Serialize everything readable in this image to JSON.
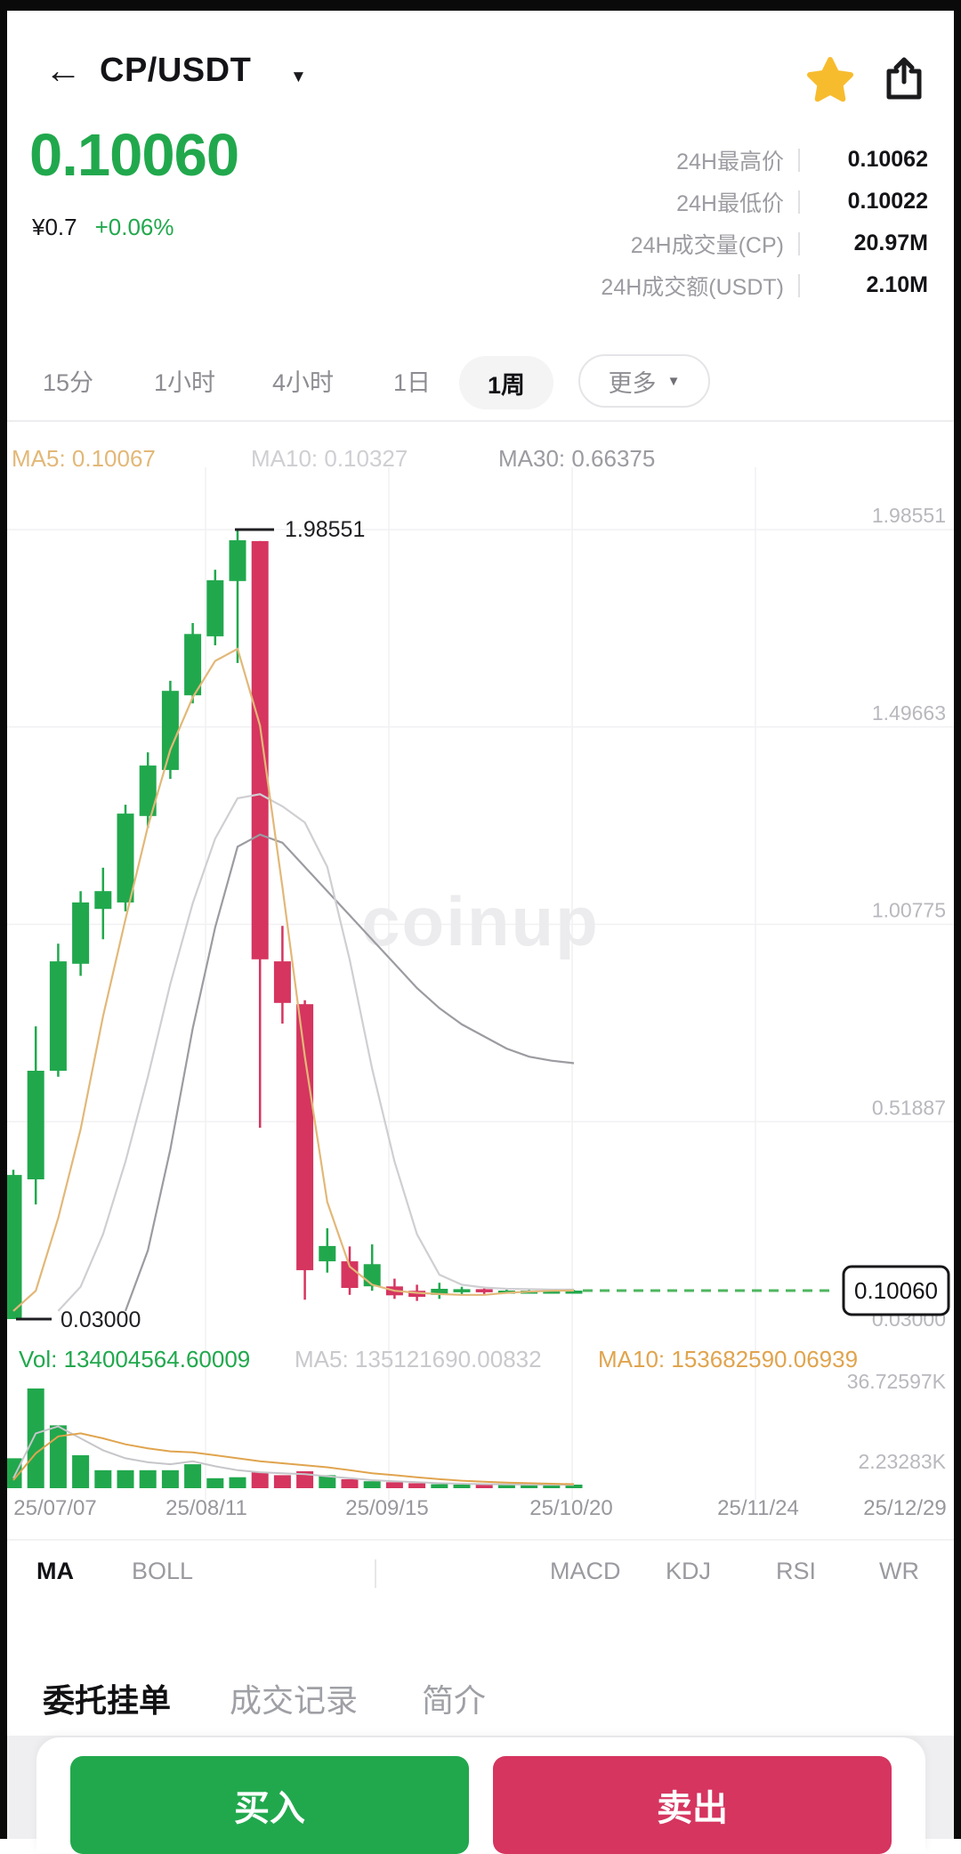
{
  "colors": {
    "green": "#21a84d",
    "red": "#d5355f",
    "ma5_orange": "#e2b878",
    "ma10_gray": "#cfcfd3",
    "ma30_gray": "#9b9ba1",
    "vol_ma_gray": "#c6c6ca",
    "vol_ma_orange": "#e0a44e",
    "grid": "#f1f1f3",
    "axis_text": "#b8b8be",
    "dashed_line": "#4db65e",
    "star_yellow": "#f7bc2e",
    "marker_text": "#1f1f23"
  },
  "header": {
    "back_icon": "←",
    "symbol": "CP/USDT",
    "caret": "▼"
  },
  "ticker": {
    "last_price": "0.10060",
    "fiat_value": "¥0.7",
    "change_percent": "+0.06%",
    "stats": [
      {
        "label": "24H最高价",
        "value": "0.10062"
      },
      {
        "label": "24H最低价",
        "value": "0.10022"
      },
      {
        "label": "24H成交量(CP)",
        "value": "20.97M"
      },
      {
        "label": "24H成交额(USDT)",
        "value": "2.10M"
      }
    ]
  },
  "timeframes": {
    "items": [
      "15分",
      "1小时",
      "4小时",
      "1日",
      "1周"
    ],
    "selected": "1周",
    "more_label": "更多",
    "more_caret": "▼"
  },
  "watermark": "coinup",
  "chart_data": {
    "type": "candlestick+volume",
    "symbol": "CP/USDT",
    "interval": "1周",
    "ma_labels": {
      "ma5": "MA5: 0.10067",
      "ma10": "MA10: 0.10327",
      "ma30": "MA30: 0.66375"
    },
    "y_axis_labels": [
      "1.98551",
      "1.49663",
      "1.00775",
      "0.51887"
    ],
    "y_axis_bottom_label": "0.03000",
    "high_marker": {
      "price": 1.98551,
      "label": "1.98551"
    },
    "low_marker": {
      "price": 0.03,
      "label": "0.03000"
    },
    "last_price": {
      "value": 0.1006,
      "label": "0.10060"
    },
    "x_labels": [
      "25/07/07",
      "25/08/11",
      "25/09/15",
      "25/10/20",
      "25/11/24",
      "25/12/29"
    ],
    "candles": [
      [
        0.03,
        0.4,
        0.03,
        0.387
      ],
      [
        0.376,
        0.755,
        0.314,
        0.645
      ],
      [
        0.645,
        0.96,
        0.63,
        0.916
      ],
      [
        0.91,
        1.09,
        0.88,
        1.062
      ],
      [
        1.046,
        1.148,
        0.971,
        1.09
      ],
      [
        1.062,
        1.304,
        1.04,
        1.282
      ],
      [
        1.276,
        1.434,
        1.247,
        1.401
      ],
      [
        1.39,
        1.611,
        1.368,
        1.586
      ],
      [
        1.575,
        1.754,
        1.555,
        1.727
      ],
      [
        1.721,
        1.886,
        1.699,
        1.86
      ],
      [
        1.858,
        1.98551,
        1.655,
        1.959
      ],
      [
        1.957,
        1.957,
        0.504,
        0.921
      ],
      [
        0.916,
        1.004,
        0.762,
        0.813
      ],
      [
        0.81,
        0.82,
        0.078,
        0.151
      ],
      [
        0.173,
        0.255,
        0.145,
        0.211
      ],
      [
        0.173,
        0.21,
        0.09,
        0.107
      ],
      [
        0.111,
        0.215,
        0.1,
        0.166
      ],
      [
        0.111,
        0.13,
        0.08,
        0.089
      ],
      [
        0.1,
        0.115,
        0.075,
        0.085
      ],
      [
        0.09,
        0.12,
        0.08,
        0.105
      ],
      [
        0.098,
        0.11,
        0.09,
        0.104
      ],
      [
        0.104,
        0.11,
        0.092,
        0.098
      ],
      [
        0.098,
        0.106,
        0.094,
        0.1006
      ],
      [
        0.1,
        0.104,
        0.096,
        0.1006
      ],
      [
        0.1,
        0.103,
        0.097,
        0.1006
      ],
      [
        0.1,
        0.102,
        0.098,
        0.1006
      ]
    ],
    "price_ma_lines": {
      "ma5": [
        0.05,
        0.1,
        0.28,
        0.5,
        0.78,
        1.02,
        1.25,
        1.44,
        1.57,
        1.66,
        1.69,
        1.5,
        1.1,
        0.68,
        0.32,
        0.16,
        0.115,
        0.1,
        0.095,
        0.092,
        0.09,
        0.09,
        0.095,
        0.098,
        0.1,
        0.10067
      ],
      "ma10": [
        null,
        null,
        0.05,
        0.11,
        0.24,
        0.42,
        0.63,
        0.86,
        1.06,
        1.22,
        1.32,
        1.33,
        1.3,
        1.26,
        1.15,
        0.92,
        0.65,
        0.42,
        0.24,
        0.14,
        0.115,
        0.108,
        0.105,
        0.104,
        0.103,
        0.10327
      ],
      "ma30": [
        null,
        null,
        null,
        null,
        null,
        0.05,
        0.2,
        0.45,
        0.75,
        1.0,
        1.2,
        1.23,
        1.21,
        1.15,
        1.09,
        1.03,
        0.97,
        0.91,
        0.85,
        0.8,
        0.76,
        0.73,
        0.7,
        0.68,
        0.67,
        0.66375
      ]
    },
    "volume": {
      "label": "Vol: 134004564.60009",
      "ma5_label": "MA5: 135121690.00832",
      "ma10_label": "MA10: 153682590.06939",
      "axis_top": "36.72597K",
      "axis_bottom": "2.23283K",
      "bars": [
        [
          0.3,
          "u"
        ],
        [
          1.0,
          "u"
        ],
        [
          0.63,
          "u"
        ],
        [
          0.33,
          "u"
        ],
        [
          0.18,
          "u"
        ],
        [
          0.18,
          "u"
        ],
        [
          0.18,
          "u"
        ],
        [
          0.18,
          "u"
        ],
        [
          0.24,
          "u"
        ],
        [
          0.1,
          "u"
        ],
        [
          0.11,
          "u"
        ],
        [
          0.16,
          "d"
        ],
        [
          0.13,
          "d"
        ],
        [
          0.17,
          "d"
        ],
        [
          0.13,
          "u"
        ],
        [
          0.09,
          "d"
        ],
        [
          0.07,
          "u"
        ],
        [
          0.06,
          "d"
        ],
        [
          0.05,
          "d"
        ],
        [
          0.04,
          "u"
        ],
        [
          0.03,
          "u"
        ],
        [
          0.03,
          "d"
        ],
        [
          0.025,
          "u"
        ],
        [
          0.02,
          "u"
        ],
        [
          0.02,
          "u"
        ],
        [
          0.015,
          "u"
        ]
      ],
      "ma_lines": {
        "gray": [
          0.1,
          0.55,
          0.62,
          0.5,
          0.38,
          0.3,
          0.26,
          0.24,
          0.27,
          0.22,
          0.18,
          0.16,
          0.15,
          0.14,
          0.12,
          0.1,
          0.08,
          0.07,
          0.06,
          0.05,
          0.045,
          0.04,
          0.038,
          0.036,
          0.035,
          0.034
        ],
        "orange": [
          0.08,
          0.35,
          0.52,
          0.55,
          0.5,
          0.44,
          0.4,
          0.37,
          0.36,
          0.33,
          0.3,
          0.27,
          0.25,
          0.23,
          0.21,
          0.18,
          0.15,
          0.13,
          0.11,
          0.09,
          0.075,
          0.065,
          0.055,
          0.05,
          0.045,
          0.04
        ]
      }
    }
  },
  "indicator_tabs": {
    "selected": "MA",
    "left": [
      "MA",
      "BOLL"
    ],
    "right": [
      "MACD",
      "KDJ",
      "RSI",
      "WR"
    ]
  },
  "bottom_tabs": {
    "selected": "委托挂单",
    "items": [
      "委托挂单",
      "成交记录",
      "简介"
    ]
  },
  "actions": {
    "buy": "买入",
    "sell": "卖出"
  }
}
